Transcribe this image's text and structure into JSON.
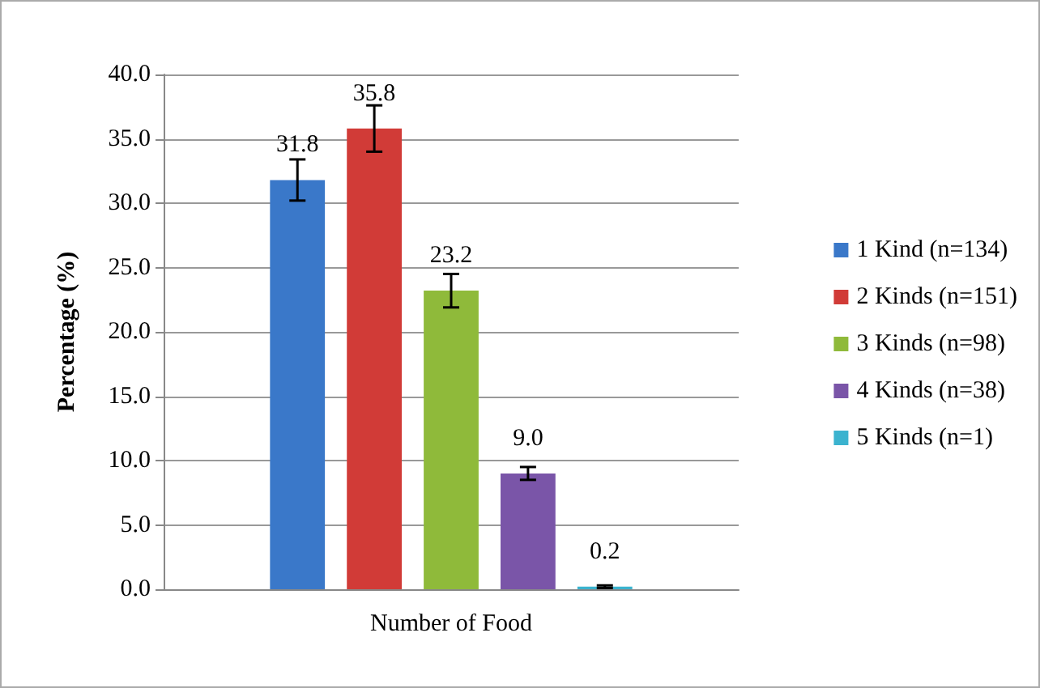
{
  "chart_data": {
    "type": "bar",
    "xlabel": "Number of Food",
    "ylabel": "Percentage (%)",
    "categories": [
      null
    ],
    "series": [
      {
        "name": "1 Kind (n=134)",
        "color": "#3a78c9",
        "values": [
          31.8
        ],
        "errors": [
          1.6
        ],
        "value_labels": [
          "31.8"
        ]
      },
      {
        "name": "2 Kinds (n=151)",
        "color": "#d13b37",
        "values": [
          35.8
        ],
        "errors": [
          1.8
        ],
        "value_labels": [
          "35.8"
        ]
      },
      {
        "name": "3 Kinds (n=98)",
        "color": "#8fba3a",
        "values": [
          23.2
        ],
        "errors": [
          1.3
        ],
        "value_labels": [
          "23.2"
        ]
      },
      {
        "name": "4 Kinds (n=38)",
        "color": "#7a55a8",
        "values": [
          9.0
        ],
        "errors": [
          0.5
        ],
        "value_labels": [
          "9.0"
        ]
      },
      {
        "name": "5 Kinds (n=1)",
        "color": "#3bb3cf",
        "values": [
          0.2
        ],
        "errors": [
          0.1
        ],
        "value_labels": [
          "0.2"
        ]
      }
    ],
    "ylim": [
      0,
      40
    ],
    "yticks": [
      {
        "value": 0,
        "label": "0.0"
      },
      {
        "value": 5,
        "label": "5.0"
      },
      {
        "value": 10,
        "label": "10.0"
      },
      {
        "value": 15,
        "label": "15.0"
      },
      {
        "value": 20,
        "label": "20.0"
      },
      {
        "value": 25,
        "label": "25.0"
      },
      {
        "value": 30,
        "label": "30.0"
      },
      {
        "value": 35,
        "label": "35.0"
      },
      {
        "value": 40,
        "label": "40.0"
      }
    ],
    "grid": "y",
    "legend": "right"
  }
}
